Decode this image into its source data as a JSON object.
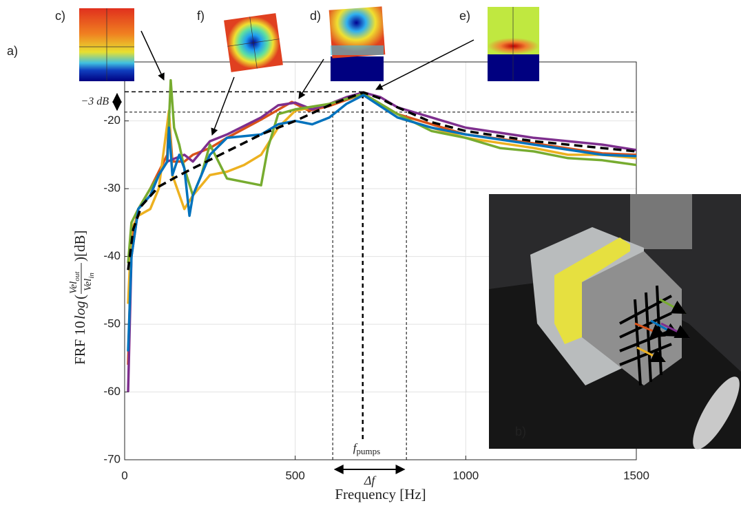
{
  "chart_data": {
    "type": "line",
    "xlabel": "Frequency [Hz]",
    "ylabel": {
      "prefix": "FRF 10",
      "fn": "log",
      "open": "(",
      "num": "Vel",
      "num_sub": "out",
      "den": "Vel",
      "den_sub": "in",
      "suffix": ")[dB]"
    },
    "xlim": [
      0,
      1500
    ],
    "xticks": [
      0,
      500,
      1000,
      1500
    ],
    "ylim": [
      -70,
      -11.3
    ],
    "yticks": [
      -70,
      -60,
      -50,
      -40,
      -30,
      -20
    ],
    "grid": true,
    "series": [
      {
        "color": "#d95319",
        "x": [
          10,
          20,
          40,
          75,
          100,
          125,
          130,
          140,
          175,
          200,
          250,
          300,
          400,
          490,
          540,
          600,
          700,
          800,
          900,
          1000,
          1200,
          1400,
          1500
        ],
        "values": [
          -56,
          -38,
          -33,
          -30,
          -27.5,
          -25,
          -19,
          -26,
          -26,
          -25,
          -24,
          -22.5,
          -19.8,
          -17.2,
          -18.5,
          -17.8,
          -16,
          -19,
          -20.5,
          -22,
          -23.3,
          -24.8,
          -25
        ]
      },
      {
        "color": "#edb120",
        "x": [
          10,
          20,
          40,
          75,
          100,
          130,
          140,
          175,
          200,
          250,
          300,
          350,
          400,
          450,
          500,
          550,
          600,
          700,
          800,
          900,
          1000,
          1200,
          1300,
          1400,
          1500
        ],
        "values": [
          -47,
          -36,
          -34,
          -33,
          -30,
          -18.5,
          -28,
          -33,
          -31,
          -28,
          -27.5,
          -26.5,
          -25,
          -21,
          -18.5,
          -18,
          -17.5,
          -16,
          -19.5,
          -21,
          -22.5,
          -24,
          -25,
          -25,
          -25.5
        ]
      },
      {
        "color": "#7e2f8e",
        "x": [
          10,
          20,
          40,
          75,
          100,
          125,
          150,
          175,
          200,
          250,
          300,
          400,
          450,
          500,
          550,
          600,
          650,
          700,
          750,
          800,
          900,
          1000,
          1200,
          1400,
          1500
        ],
        "values": [
          -60,
          -40,
          -33,
          -31,
          -28,
          -26,
          -25.5,
          -25,
          -26,
          -23,
          -22,
          -19.5,
          -17.7,
          -17.3,
          -18.3,
          -17.5,
          -16.5,
          -15.8,
          -16.5,
          -18,
          -19.5,
          -21,
          -22.5,
          -23.5,
          -24.3
        ]
      },
      {
        "color": "#77ac30",
        "x": [
          10,
          20,
          40,
          75,
          100,
          125,
          135,
          145,
          160,
          175,
          200,
          225,
          250,
          300,
          350,
          400,
          420,
          450,
          500,
          600,
          700,
          800,
          900,
          1000,
          1100,
          1200,
          1300,
          1400,
          1500
        ],
        "values": [
          -41,
          -35,
          -33,
          -30,
          -28,
          -26,
          -14,
          -21,
          -23.5,
          -27,
          -31,
          -28,
          -23.5,
          -28.5,
          -29,
          -29.5,
          -24,
          -19,
          -18.3,
          -17.5,
          -16,
          -19,
          -21.5,
          -22.5,
          -24,
          -24.5,
          -25.5,
          -25.8,
          -26.5
        ]
      },
      {
        "color": "#0072bd",
        "x": [
          10,
          20,
          40,
          75,
          100,
          125,
          130,
          140,
          160,
          175,
          190,
          200,
          250,
          300,
          400,
          450,
          500,
          550,
          600,
          650,
          700,
          800,
          900,
          1000,
          1200,
          1400,
          1500
        ],
        "values": [
          -54,
          -40,
          -33,
          -31,
          -28,
          -26,
          -21,
          -28,
          -25,
          -27,
          -34,
          -31,
          -25,
          -22.5,
          -22,
          -20.5,
          -20,
          -20.5,
          -19.5,
          -17.5,
          -16.2,
          -19.5,
          -21,
          -22,
          -23.5,
          -25,
          -25.2
        ]
      },
      {
        "color": "#000000",
        "dash": true,
        "x": [
          10,
          25,
          50,
          100,
          150,
          200,
          300,
          400,
          500,
          600,
          650,
          700,
          750,
          800,
          900,
          1000,
          1200,
          1400,
          1500
        ],
        "values": [
          -42,
          -36,
          -32.5,
          -29.7,
          -28.3,
          -27,
          -24.5,
          -22,
          -20,
          -17.7,
          -16.7,
          -15.8,
          -16.7,
          -18,
          -20.2,
          -21.5,
          -23,
          -24,
          -24.5
        ]
      }
    ],
    "hlines": [
      -15.7,
      -18.7
    ],
    "vlines": [
      610,
      698,
      826
    ],
    "annotations": {
      "db_label": "−3 dB",
      "f_symbol": "f",
      "f_sub": "pumps",
      "delta_f": "Δf",
      "panel_a": "a)",
      "panel_b": "b)",
      "panel_c": "c)",
      "panel_d": "d)",
      "panel_e": "e)",
      "panel_f": "f)"
    }
  }
}
